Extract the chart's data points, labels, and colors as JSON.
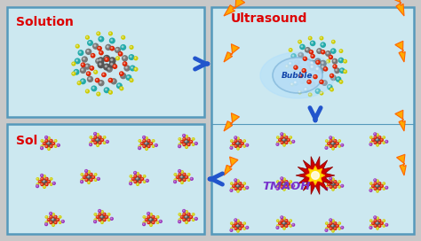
{
  "bg_color": "#cce8f0",
  "outer_bg": "#c8c8c8",
  "box_border_color": "#5599bb",
  "box1_label": "Solution",
  "box2_label": "Ultrasound",
  "box3_label": "Sol",
  "arrow_color": "#2255cc",
  "tmaoh_label": "TMAOH",
  "tmaoh_color": "#7733cc",
  "bubble_color": "#99ccee",
  "bubble_label": "Bubble",
  "bubble_label_color": "#1144aa",
  "lightning_color": "#ffaa00",
  "lightning_outline": "#ff6600",
  "explosion_color_outer": "#cc0000",
  "explosion_color_inner": "#ffdd00",
  "solution_label_color": "#dd0000",
  "ultrasound_label_color": "#dd0000",
  "sol_label_color": "#dd0000",
  "atom_gray": "#777777",
  "atom_darkgray": "#555555",
  "atom_red": "#dd2200",
  "atom_teal": "#22aaaa",
  "atom_green": "#44bb44",
  "atom_yellow": "#cccc00",
  "atom_purple": "#9933bb",
  "bond_green": "#33aa33",
  "bond_gray": "#999999"
}
